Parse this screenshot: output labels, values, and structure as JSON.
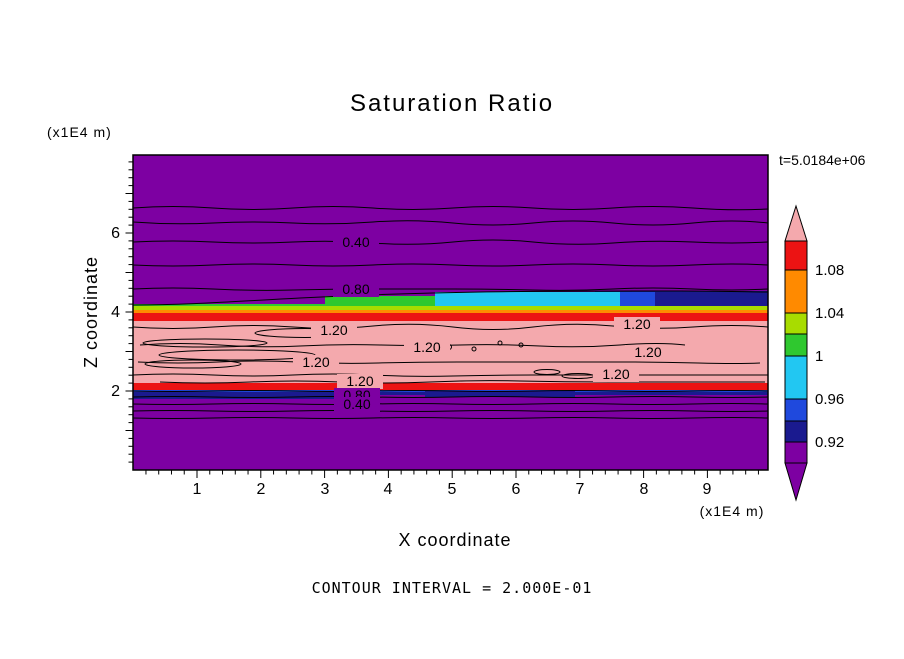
{
  "title": "Saturation Ratio",
  "annotations": {
    "time": "t=5.0184e+06",
    "contour_interval": "CONTOUR INTERVAL = 2.000E-01",
    "y_axis_unit": "(x1E4 m)",
    "x_axis_unit": "(x1E4 m)"
  },
  "axes": {
    "x": {
      "label": "X coordinate",
      "ticks": [
        "1",
        "2",
        "3",
        "4",
        "5",
        "6",
        "7",
        "8",
        "9"
      ]
    },
    "z": {
      "label": "Z coordinate",
      "ticks": [
        "2",
        "4",
        "6"
      ]
    }
  },
  "colorbar": {
    "labels": [
      "1.08",
      "1.04",
      "1",
      "0.96",
      "0.92"
    ]
  },
  "palette": {
    "pink": "#F4A9AD",
    "red": "#EC1313",
    "orange": "#FF8A00",
    "yellow_green": "#A8DC00",
    "green": "#2FC82F",
    "cyan": "#22C7F2",
    "blue": "#1F49DD",
    "dark_blue": "#1A1A8F",
    "purple": "#7D00A2"
  },
  "contour_labels": [
    "0.40",
    "0.80",
    "1.20",
    "1.20",
    "1.20",
    "1.20",
    "1.20",
    "1.20",
    "1.20",
    "0.80",
    "0.40"
  ],
  "chart_data": {
    "type": "heatmap",
    "title": "Saturation Ratio",
    "xlabel": "X coordinate (x1E4 m)",
    "ylabel": "Z coordinate (x1E4 m)",
    "xlim": [
      0,
      10
    ],
    "ylim": [
      0,
      8
    ],
    "time_annotation": "t=5.0184e+06",
    "contour_interval": 0.2,
    "colorbar_ticks": [
      1.08,
      1.04,
      1,
      0.96,
      0.92
    ],
    "colorbar_order_top_to_bottom": [
      "pink (>1.08, arrow)",
      "red",
      "orange",
      "yellow-green",
      "green",
      "cyan",
      "blue",
      "dark blue",
      "purple (<0.92, arrow)"
    ],
    "labeled_contour_values": [
      0.4,
      0.8,
      1.2
    ],
    "bands_top_to_bottom": [
      {
        "z_range": [
          4.2,
          8.0
        ],
        "value": "saturation < 0.92",
        "color": "purple",
        "contour_lines": [
          0.2,
          0.4,
          0.6,
          0.8
        ]
      },
      {
        "z_range": [
          3.95,
          4.2
        ],
        "value": "0.92 to 1.08 transition",
        "color": "navy at right, cyan and green at center, thin yellow-green across full width"
      },
      {
        "z_range": [
          3.75,
          3.95
        ],
        "value": "1.04 to 1.08",
        "color": "red stripe, full width"
      },
      {
        "z_range": [
          2.2,
          3.75
        ],
        "value": "saturation > 1.08",
        "color": "pink with many closed 1.20 contour loops"
      },
      {
        "z_range": [
          2.0,
          2.2
        ],
        "value": "1.04 to 1.08",
        "color": "red stripe, full width"
      },
      {
        "z_range": [
          1.8,
          2.0
        ],
        "value": "0.92 to 1.04",
        "color": "thin blue and navy strips"
      },
      {
        "z_range": [
          0.0,
          1.8
        ],
        "value": "saturation < 0.92",
        "color": "purple",
        "contour_lines": [
          0.8,
          0.4,
          0.2
        ]
      }
    ]
  }
}
